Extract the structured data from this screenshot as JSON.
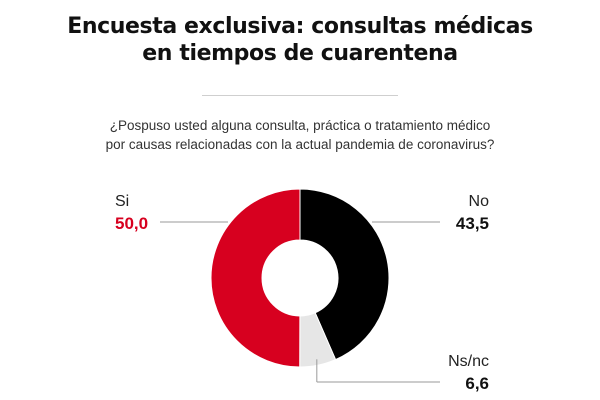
{
  "title_lines": [
    "Encuesta exclusiva: consultas médicas",
    "en tiempos de cuarentena"
  ],
  "question_lines": [
    "¿Pospuso usted alguna consulta, práctica o tratamiento médico",
    "por causas relacionadas con la actual pandemia de coronavirus?"
  ],
  "chart_data": {
    "type": "pie",
    "donut": true,
    "title": "Encuesta exclusiva: consultas médicas en tiempos de cuarentena",
    "subtitle": "¿Pospuso usted alguna consulta, práctica o tratamiento médico por causas relacionadas con la actual pandemia de coronavirus?",
    "slices": [
      {
        "label": "Si",
        "value": 50.0,
        "display": "50,0",
        "color": "#d7001f",
        "value_color": "#d7001f"
      },
      {
        "label": "No",
        "value": 43.5,
        "display": "43,5",
        "color": "#000000",
        "value_color": "#111111"
      },
      {
        "label": "Ns/nc",
        "value": 6.6,
        "display": "6,6",
        "color": "#e6e6e6",
        "value_color": "#111111"
      }
    ]
  }
}
